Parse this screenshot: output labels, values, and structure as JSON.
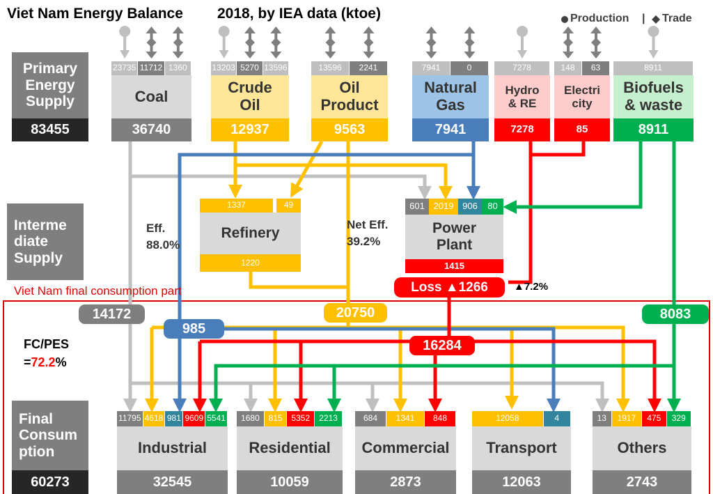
{
  "header": {
    "title": "Viet Nam Energy Balance",
    "subtitle": "2018, by IEA data (ktoe)",
    "legend": {
      "production": "Production",
      "separator": "|",
      "trade": "Trade"
    }
  },
  "primary": {
    "label": "Primary\nEnergy\nSupply",
    "total": 83455,
    "sources": [
      {
        "name": "Coal",
        "inputs": [
          23735,
          11712,
          1360
        ],
        "total": 36740,
        "name_bg": "#d9d9d9",
        "total_bg": "#7f7f7f"
      },
      {
        "name": "Crude\nOil",
        "inputs": [
          13203,
          5270,
          13596
        ],
        "total": 12937,
        "name_bg": "#ffe699",
        "total_bg": "#ffc000"
      },
      {
        "name": "Oil\nProduct",
        "inputs": [
          13596,
          2241
        ],
        "total": 9563,
        "name_bg": "#ffe699",
        "total_bg": "#ffc000"
      },
      {
        "name": "Natural\nGas",
        "inputs": [
          7941,
          0
        ],
        "total": 7941,
        "name_bg": "#9dc3e6",
        "total_bg": "#4a7ebb"
      },
      {
        "name": "Hydro\n& RE",
        "inputs": [
          7278
        ],
        "total": 7278,
        "name_bg": "#ffcccc",
        "total_bg": "#ff0000"
      },
      {
        "name": "Electri\ncity",
        "inputs": [
          148,
          63
        ],
        "total": 85,
        "name_bg": "#ffcccc",
        "total_bg": "#ff0000"
      },
      {
        "name": "Biofuels\n& waste",
        "inputs": [
          8911
        ],
        "total": 8911,
        "name_bg": "#c6efce",
        "total_bg": "#00b050"
      }
    ]
  },
  "intermediate": {
    "label": "Interme\ndiate\nSupply",
    "refinery": {
      "name": "Refinery",
      "inputs": [
        {
          "value": 1337,
          "color": "#ffc000"
        },
        {
          "value": 49,
          "color": "#ffc000"
        }
      ],
      "output": 1220,
      "efficiency": {
        "label": "Eff.",
        "value": 88,
        "value_label": "88.0%"
      }
    },
    "power_plant": {
      "name": "Power\nPlant",
      "inputs": [
        {
          "value": 601,
          "color": "#7f7f7f"
        },
        {
          "value": 2019,
          "color": "#ffc000"
        },
        {
          "value": 906,
          "color": "#31859c"
        },
        {
          "value": 80,
          "color": "#00b050"
        }
      ],
      "output": 1415,
      "efficiency": {
        "label": "Net Eff.",
        "value": 39.2,
        "value_label": "39.2%"
      },
      "loss": {
        "label": "Loss ▲",
        "value": 1266,
        "share": {
          "prefix": "▲",
          "value": 7.2,
          "suffix": "%"
        }
      }
    }
  },
  "final": {
    "section_label": "Viet Nam final consumption part",
    "fc_pes": {
      "label": "FC/PES",
      "prefix": "=",
      "value": 72.2,
      "suffix": "%"
    },
    "flows": [
      {
        "value": 14172,
        "color": "#7f7f7f"
      },
      {
        "value": 985,
        "color": "#4a7ebb"
      },
      {
        "value": 20750,
        "color": "#ffc000"
      },
      {
        "value": 16284,
        "color": "#ff0000"
      },
      {
        "value": 8083,
        "color": "#00b050"
      }
    ],
    "label": "Final\nConsum\nption",
    "total": 60273,
    "sectors": [
      {
        "name": "Industrial",
        "inputs": [
          {
            "value": 11795,
            "color": "#7f7f7f"
          },
          {
            "value": 4618,
            "color": "#ffc000"
          },
          {
            "value": 981,
            "color": "#31859c"
          },
          {
            "value": 9609,
            "color": "#ff0000"
          },
          {
            "value": 5541,
            "color": "#00b050"
          }
        ],
        "total": 32545
      },
      {
        "name": "Residential",
        "inputs": [
          {
            "value": 1680,
            "color": "#7f7f7f"
          },
          {
            "value": 815,
            "color": "#ffc000"
          },
          {
            "value": 5352,
            "color": "#ff0000"
          },
          {
            "value": 2213,
            "color": "#00b050"
          }
        ],
        "total": 10059
      },
      {
        "name": "Commercial",
        "inputs": [
          {
            "value": 684,
            "color": "#7f7f7f"
          },
          {
            "value": 1341,
            "color": "#ffc000"
          },
          {
            "value": 848,
            "color": "#ff0000"
          }
        ],
        "total": 2873
      },
      {
        "name": "Transport",
        "inputs": [
          {
            "value": 12058,
            "color": "#ffc000"
          },
          {
            "value": 4,
            "color": "#31859c"
          }
        ],
        "total": 12063
      },
      {
        "name": "Others",
        "inputs": [
          {
            "value": 13,
            "color": "#7f7f7f"
          },
          {
            "value": 1917,
            "color": "#ffc000"
          },
          {
            "value": 475,
            "color": "#ff0000"
          },
          {
            "value": 329,
            "color": "#00b050"
          }
        ],
        "total": 2743
      }
    ]
  }
}
